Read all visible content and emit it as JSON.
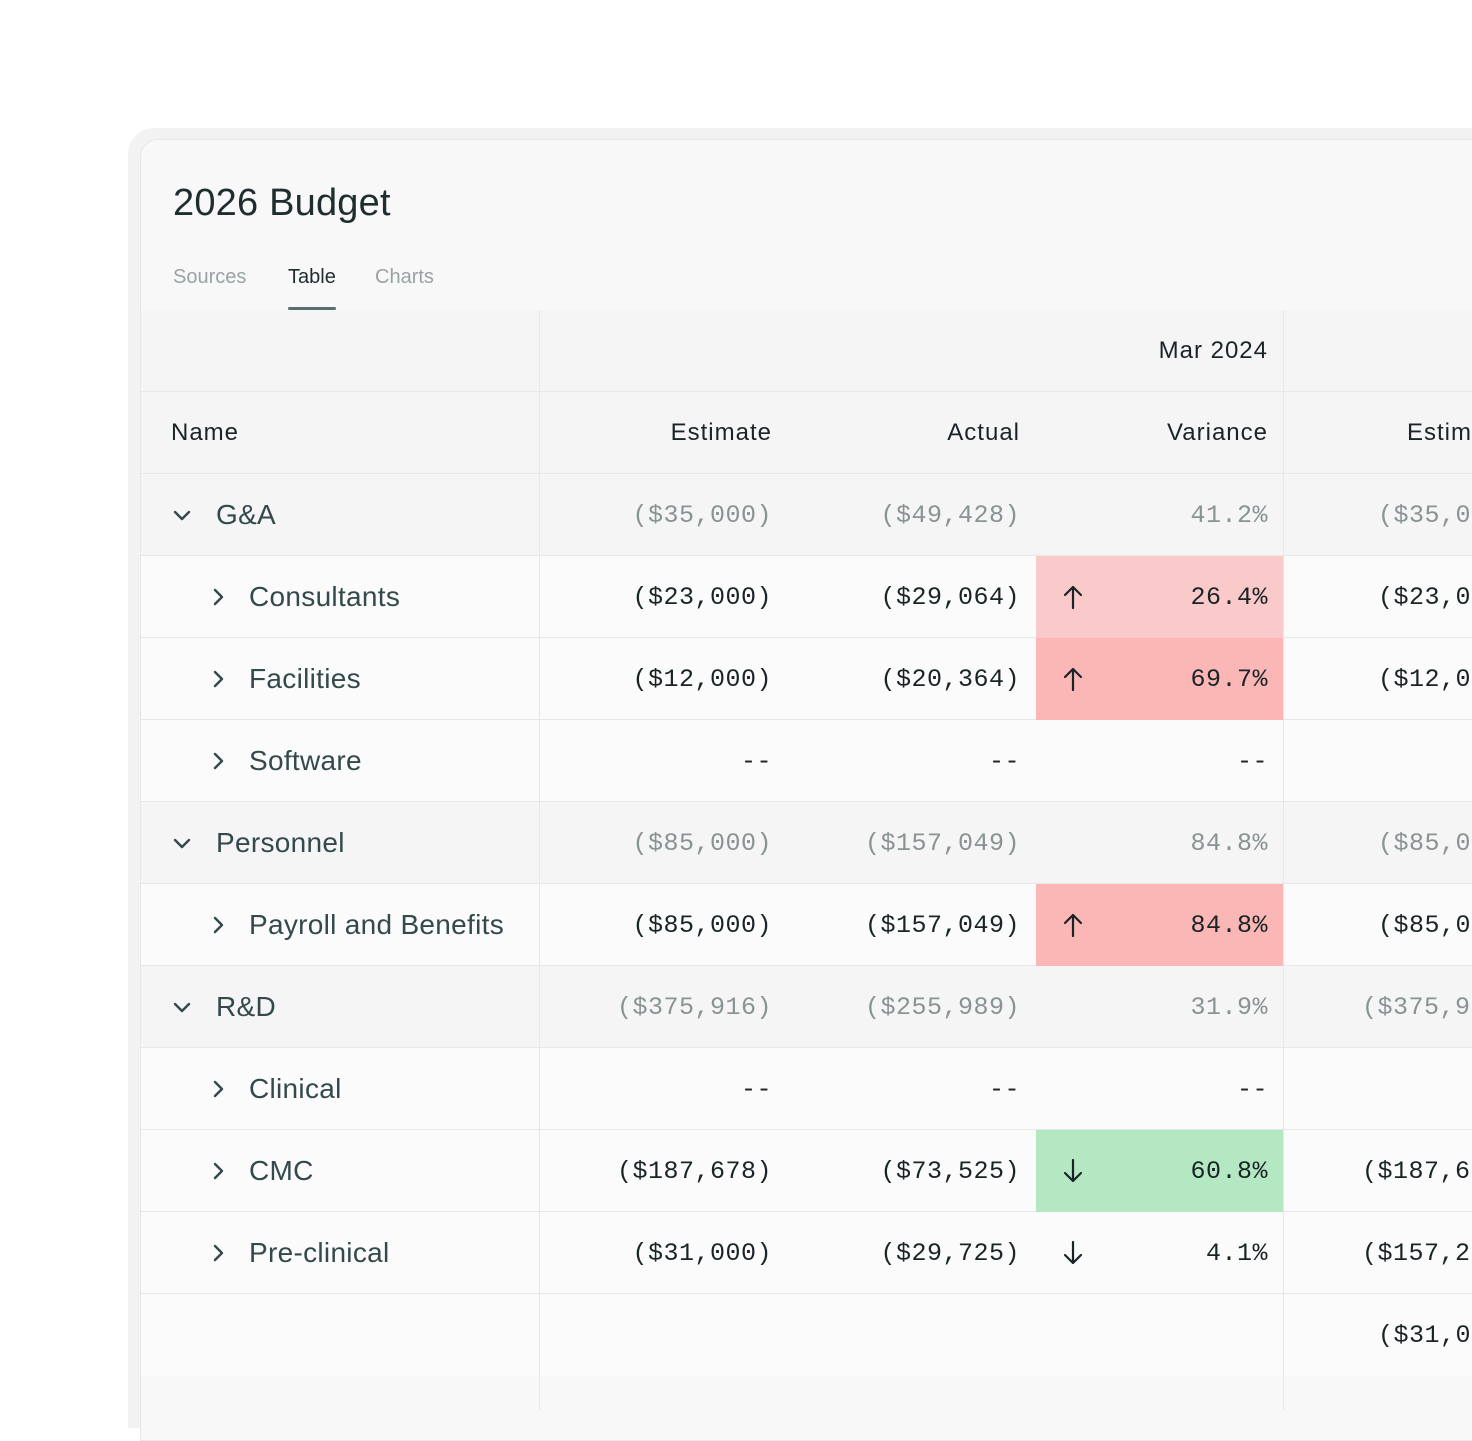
{
  "title": "2026 Budget",
  "tabs": [
    {
      "label": "Sources"
    },
    {
      "label": "Table"
    },
    {
      "label": "Charts"
    }
  ],
  "period_header": "Mar 2024",
  "columns": {
    "name": "Name",
    "estimate": "Estimate",
    "actual": "Actual",
    "variance": "Variance",
    "next_estimate": "Estim"
  },
  "rows": [
    {
      "name": "G&A",
      "estimate": "($35,000)",
      "actual": "($49,428)",
      "variance": "41.2%",
      "next": "($35,0"
    },
    {
      "name": "Consultants",
      "estimate": "($23,000)",
      "actual": "($29,064)",
      "variance": "26.4%",
      "next": "($23,0"
    },
    {
      "name": "Facilities",
      "estimate": "($12,000)",
      "actual": "($20,364)",
      "variance": "69.7%",
      "next": "($12,0"
    },
    {
      "name": "Software",
      "estimate": "--",
      "actual": "--",
      "variance": "--",
      "next": ""
    },
    {
      "name": "Personnel",
      "estimate": "($85,000)",
      "actual": "($157,049)",
      "variance": "84.8%",
      "next": "($85,0"
    },
    {
      "name": "Payroll and Benefits",
      "estimate": "($85,000)",
      "actual": "($157,049)",
      "variance": "84.8%",
      "next": "($85,0"
    },
    {
      "name": "R&D",
      "estimate": "($375,916)",
      "actual": "($255,989)",
      "variance": "31.9%",
      "next": "($375,9"
    },
    {
      "name": "Clinical",
      "estimate": "--",
      "actual": "--",
      "variance": "--",
      "next": ""
    },
    {
      "name": "CMC",
      "estimate": "($187,678)",
      "actual": "($73,525)",
      "variance": "60.8%",
      "next": "($187,6"
    },
    {
      "name": "Pre-clinical",
      "estimate": "($31,000)",
      "actual": "($29,725)",
      "variance": "4.1%",
      "next": "($157,2"
    },
    {
      "name": "",
      "estimate": "",
      "actual": "",
      "variance": "",
      "next": "($31,0"
    }
  ],
  "colors": {
    "variance_up_light": "#fac9c9",
    "variance_up_strong": "#fbb6b6",
    "variance_down": "#b3e8c3"
  }
}
